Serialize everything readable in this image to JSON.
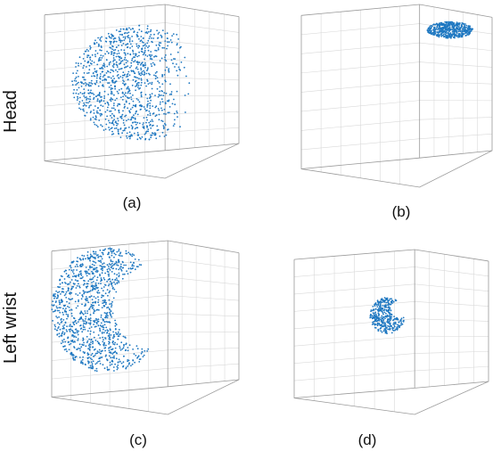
{
  "row_labels": [
    "Head",
    "Left wrist"
  ],
  "chart_data": [
    {
      "type": "scatter",
      "caption": "(a)",
      "row": "Head",
      "shape": "hemisphere",
      "cloud": {
        "cx": 0.5,
        "cy": 0.45,
        "rx": 0.36,
        "ry": 0.33,
        "density": 1500
      },
      "color": "#1f78c1"
    },
    {
      "type": "scatter",
      "caption": "(b)",
      "row": "Head",
      "shape": "small-ellipse",
      "cloud": {
        "cx": 0.78,
        "cy": 0.14,
        "rx": 0.12,
        "ry": 0.045,
        "density": 500
      },
      "color": "#1f78c1"
    },
    {
      "type": "scatter",
      "caption": "(c)",
      "row": "Left wrist",
      "shape": "crescent",
      "cloud": {
        "cx": 0.3,
        "cy": 0.4,
        "rx": 0.3,
        "ry": 0.36,
        "density": 1600
      },
      "color": "#1f78c1"
    },
    {
      "type": "scatter",
      "caption": "(d)",
      "row": "Left wrist",
      "shape": "small-blob",
      "cloud": {
        "cx": 0.48,
        "cy": 0.4,
        "rx": 0.09,
        "ry": 0.11,
        "density": 450
      },
      "color": "#1f78c1"
    }
  ]
}
